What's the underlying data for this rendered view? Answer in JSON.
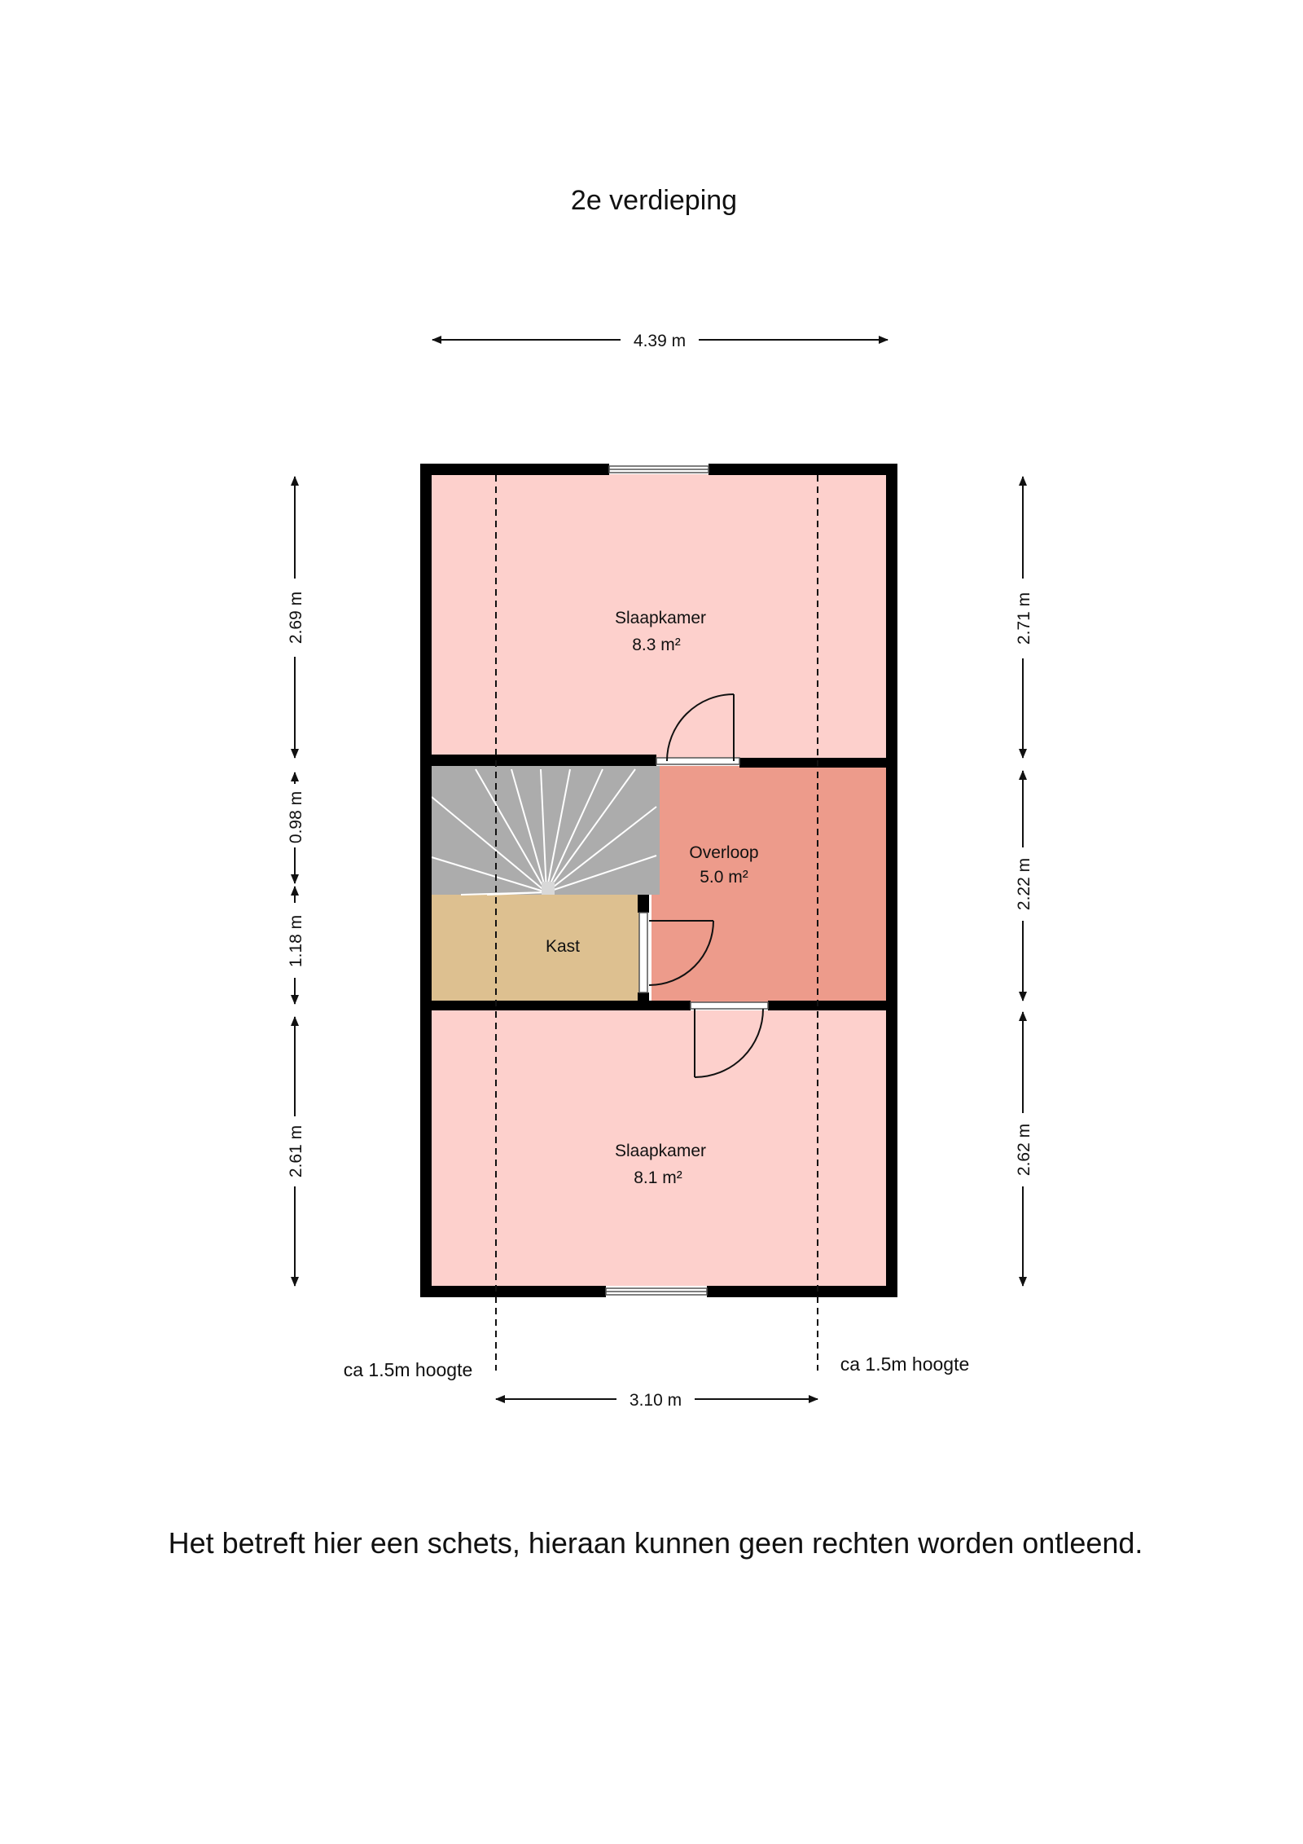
{
  "title": "2e verdieping",
  "disclaimer": "Het betreft hier een schets, hieraan kunnen geen rechten worden ontleend.",
  "colors": {
    "bedroom": "#fdd0cc",
    "landing": "#ed9b8b",
    "closet": "#ddc090",
    "stairs": "#acacac",
    "wall": "#000000"
  },
  "rooms": {
    "bedroom_top": {
      "name": "Slaapkamer",
      "area": "8.3 m²"
    },
    "landing": {
      "name": "Overloop",
      "area": "5.0 m²"
    },
    "closet": {
      "name": "Kast"
    },
    "bedroom_bottom": {
      "name": "Slaapkamer",
      "area": "8.1 m²"
    }
  },
  "dimensions": {
    "top_width": "4.39 m",
    "bottom_width": "3.10 m",
    "left": [
      "2.69 m",
      "0.98 m",
      "1.18 m",
      "2.61 m"
    ],
    "right": [
      "2.71 m",
      "2.22 m",
      "2.62 m"
    ]
  },
  "notes": {
    "left_height": "ca 1.5m hoogte",
    "right_height": "ca 1.5m hoogte"
  },
  "icons": [
    "stairs-icon",
    "door-swing-icon",
    "window-icon",
    "dimension-arrow-icon"
  ]
}
